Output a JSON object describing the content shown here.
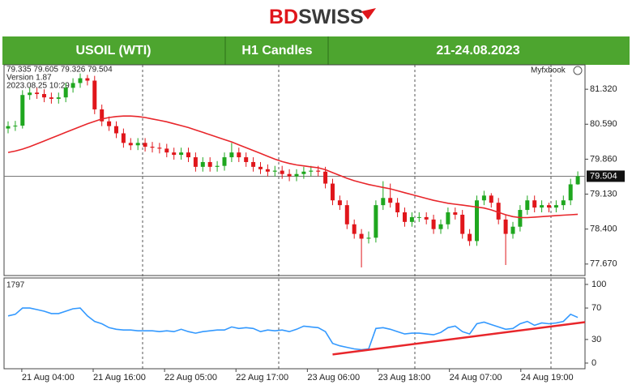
{
  "logo": {
    "prefix": "BD",
    "suffix": "SWISS"
  },
  "header": {
    "symbol": "USOIL (WTI)",
    "timeframe": "H1 Candles",
    "dates": "21-24.08.2023"
  },
  "chart_data": [
    {
      "type": "candlestick",
      "info": [
        "79.335 79.605 79.326 79.504",
        "Version 1.87",
        "2023.08.25 10:29"
      ],
      "watermark": "Myfxbook",
      "up_color": "#1fa71f",
      "down_color": "#e0161b",
      "xlim": [
        -0.56,
        80
      ],
      "ylim": [
        77.43,
        81.83
      ],
      "yticks": [
        {
          "value": 81.32,
          "label": "81.320"
        },
        {
          "value": 80.59,
          "label": "80.590"
        },
        {
          "value": 79.86,
          "label": "79.860"
        },
        {
          "value": 79.13,
          "label": "79.130"
        },
        {
          "value": 78.4,
          "label": "78.400"
        },
        {
          "value": 77.67,
          "label": "77.670"
        }
      ],
      "current_price": 79.504,
      "open": [
        80.5,
        80.55,
        80.56,
        81.2,
        81.25,
        81.22,
        81.15,
        81.12,
        81.15,
        81.35,
        81.45,
        81.55,
        81.5,
        80.9,
        80.65,
        80.55,
        80.4,
        80.2,
        80.15,
        80.2,
        80.12,
        80.1,
        80.08,
        80.0,
        79.95,
        80.0,
        79.9,
        79.7,
        79.8,
        79.7,
        79.72,
        79.9,
        80.0,
        79.9,
        79.8,
        79.7,
        79.65,
        79.6,
        79.62,
        79.55,
        79.5,
        79.55,
        79.6,
        79.62,
        79.6,
        79.35,
        79.0,
        78.9,
        78.5,
        78.3,
        78.2,
        78.22,
        78.9,
        79.05,
        78.95,
        78.75,
        78.55,
        78.65,
        78.65,
        78.6,
        78.4,
        78.5,
        78.75,
        78.7,
        78.3,
        78.15,
        79.0,
        79.1,
        78.95,
        78.6,
        78.3,
        78.45,
        78.8,
        79.0,
        78.85,
        78.9,
        78.85,
        78.9,
        79.0,
        79.335
      ],
      "high": [
        80.65,
        80.66,
        81.3,
        81.35,
        81.35,
        81.32,
        81.25,
        81.25,
        81.45,
        81.55,
        81.65,
        81.62,
        81.6,
        81.0,
        80.75,
        80.65,
        80.5,
        80.3,
        80.3,
        80.3,
        80.22,
        80.2,
        80.18,
        80.1,
        80.1,
        80.1,
        80.0,
        79.9,
        79.9,
        79.82,
        80.0,
        80.2,
        80.1,
        80.0,
        79.9,
        79.8,
        79.75,
        79.72,
        79.72,
        79.65,
        79.65,
        79.7,
        79.72,
        79.72,
        79.7,
        79.45,
        79.1,
        79.0,
        78.6,
        78.4,
        78.35,
        79.0,
        79.4,
        79.35,
        79.05,
        78.85,
        78.75,
        78.75,
        78.75,
        78.7,
        78.6,
        78.85,
        78.85,
        78.8,
        78.4,
        79.1,
        79.2,
        79.15,
        79.05,
        78.7,
        78.55,
        78.9,
        79.1,
        79.1,
        79.0,
        78.95,
        79.0,
        79.1,
        79.45,
        79.605
      ],
      "low": [
        80.4,
        80.45,
        80.5,
        81.1,
        81.12,
        81.05,
        81.02,
        81.02,
        81.05,
        81.25,
        81.35,
        81.4,
        80.8,
        80.55,
        80.45,
        80.3,
        80.1,
        80.05,
        80.05,
        80.02,
        80.0,
        79.98,
        79.9,
        79.85,
        79.85,
        79.8,
        79.6,
        79.6,
        79.6,
        79.6,
        79.62,
        79.8,
        79.8,
        79.7,
        79.6,
        79.55,
        79.5,
        79.5,
        79.45,
        79.4,
        79.4,
        79.45,
        79.5,
        79.5,
        79.25,
        78.9,
        78.8,
        78.4,
        78.2,
        77.6,
        78.1,
        78.12,
        78.8,
        78.85,
        78.65,
        78.45,
        78.45,
        78.55,
        78.5,
        78.3,
        78.3,
        78.4,
        78.6,
        78.2,
        78.05,
        78.05,
        78.9,
        78.85,
        78.5,
        77.65,
        78.2,
        78.35,
        78.7,
        78.75,
        78.75,
        78.75,
        78.75,
        78.8,
        78.9,
        79.326
      ],
      "close": [
        80.55,
        80.56,
        81.2,
        81.25,
        81.22,
        81.15,
        81.12,
        81.15,
        81.35,
        81.45,
        81.55,
        81.5,
        80.9,
        80.65,
        80.55,
        80.4,
        80.2,
        80.15,
        80.2,
        80.12,
        80.1,
        80.08,
        80.0,
        79.95,
        80.0,
        79.9,
        79.7,
        79.8,
        79.7,
        79.72,
        79.9,
        80.0,
        79.9,
        79.8,
        79.7,
        79.65,
        79.6,
        79.62,
        79.55,
        79.5,
        79.55,
        79.6,
        79.62,
        79.6,
        79.35,
        79.0,
        78.9,
        78.5,
        78.3,
        78.2,
        78.22,
        78.9,
        79.05,
        78.95,
        78.75,
        78.55,
        78.65,
        78.65,
        78.6,
        78.4,
        78.5,
        78.75,
        78.7,
        78.3,
        78.15,
        79.0,
        79.1,
        78.95,
        78.6,
        78.3,
        78.45,
        78.8,
        79.0,
        78.85,
        78.9,
        78.85,
        78.9,
        79.0,
        79.335,
        79.504
      ],
      "moving_average": {
        "color": "#e8262b",
        "values": [
          80.0,
          80.03,
          80.07,
          80.12,
          80.18,
          80.24,
          80.3,
          80.36,
          80.42,
          80.48,
          80.54,
          80.6,
          80.65,
          80.7,
          80.73,
          80.75,
          80.76,
          80.76,
          80.75,
          80.73,
          80.7,
          80.67,
          80.64,
          80.6,
          80.56,
          80.52,
          80.47,
          80.42,
          80.37,
          80.32,
          80.27,
          80.22,
          80.16,
          80.1,
          80.04,
          79.98,
          79.92,
          79.86,
          79.81,
          79.77,
          79.74,
          79.72,
          79.7,
          79.68,
          79.64,
          79.58,
          79.52,
          79.46,
          79.41,
          79.37,
          79.33,
          79.3,
          79.27,
          79.24,
          79.2,
          79.16,
          79.12,
          79.08,
          79.04,
          79.0,
          78.97,
          78.94,
          78.92,
          78.9,
          78.88,
          78.86,
          78.84,
          78.8,
          78.75,
          78.7,
          78.66,
          78.64,
          78.64,
          78.65,
          78.66,
          78.67,
          78.68,
          78.69,
          78.7,
          78.71
        ]
      }
    },
    {
      "type": "line",
      "label": "1797",
      "color": "#3399ff",
      "xlim": [
        -0.56,
        80
      ],
      "ylim": [
        -7.2,
        108.2
      ],
      "yticks": [
        100,
        70,
        30,
        0
      ],
      "xticks": [
        {
          "value": 1.9,
          "label": "21 Aug 04:00"
        },
        {
          "value": 11.8,
          "label": "21 Aug 16:00"
        },
        {
          "value": 21.7,
          "label": "22 Aug 05:00"
        },
        {
          "value": 31.6,
          "label": "22 Aug 17:00"
        },
        {
          "value": 41.5,
          "label": "23 Aug 06:00"
        },
        {
          "value": 51.3,
          "label": "23 Aug 18:00"
        },
        {
          "value": 61.2,
          "label": "24 Aug 07:00"
        },
        {
          "value": 71.1,
          "label": "24 Aug 19:00"
        }
      ],
      "values": [
        60,
        62,
        70,
        70,
        68,
        66,
        63,
        63,
        66,
        69,
        70,
        60,
        53,
        50,
        45,
        43,
        42,
        42,
        41,
        41,
        41,
        40,
        41,
        40,
        43,
        40,
        38,
        40,
        41,
        42,
        42,
        46,
        44,
        45,
        44,
        40,
        42,
        41,
        42,
        40,
        43,
        47,
        46,
        45,
        40,
        25,
        22,
        20,
        18,
        17,
        18,
        44,
        45,
        43,
        40,
        37,
        38,
        38,
        37,
        36,
        39,
        45,
        47,
        40,
        37,
        50,
        52,
        49,
        46,
        43,
        44,
        50,
        53,
        48,
        51,
        50,
        51,
        53,
        62,
        58
      ],
      "trend_line": {
        "color": "#e8262b",
        "x": [
          45,
          80
        ],
        "values": [
          11,
          52
        ]
      }
    }
  ]
}
